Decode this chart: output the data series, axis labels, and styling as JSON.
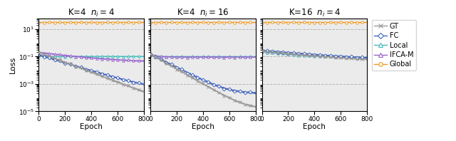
{
  "panels": [
    {
      "title": "K=4  $n_i = 4$",
      "xlabel": "Epoch",
      "xlim": [
        0,
        800
      ],
      "xticks": [
        0,
        200,
        400,
        600,
        800
      ],
      "ylim": [
        1e-05,
        60
      ],
      "curves": {
        "GT": {
          "color": "#999999",
          "marker": "x",
          "y0": 0.2,
          "yf": 1.3e-05,
          "tau": 120,
          "noise": 0.18
        },
        "FC": {
          "color": "#4466BB",
          "marker": "D",
          "y0": 0.13,
          "yf": 0.0003,
          "tau": 150,
          "noise": 0.18
        },
        "Local": {
          "color": "#44BBBB",
          "marker": "^",
          "y0": 0.11,
          "yf": 0.1,
          "tau": 30,
          "noise": 0.05
        },
        "IFCA-M": {
          "color": "#9966CC",
          "marker": "^",
          "y0": 0.2,
          "yf": 0.035,
          "tau": 300,
          "noise": 0.12
        },
        "Global": {
          "color": "#EE9922",
          "marker": "o",
          "y0": 30.0,
          "yf": 30.0,
          "tau": 9999,
          "noise": 0.03
        }
      },
      "curve_order": [
        "Global",
        "Local",
        "IFCA-M",
        "FC",
        "GT"
      ]
    },
    {
      "title": "K=4  $n_i = 16$",
      "xlabel": "Epoch",
      "xlim": [
        0,
        800
      ],
      "xticks": [
        0,
        200,
        400,
        600,
        800
      ],
      "ylim": [
        1e-05,
        60
      ],
      "curves": {
        "GT": {
          "color": "#999999",
          "marker": "x",
          "y0": 0.15,
          "yf": 1.5e-05,
          "tau": 80,
          "noise": 0.18
        },
        "FC": {
          "color": "#4466BB",
          "marker": "D",
          "y0": 0.15,
          "yf": 0.0002,
          "tau": 90,
          "noise": 0.2
        },
        "Local": {
          "color": "#44BBBB",
          "marker": "^",
          "y0": 0.12,
          "yf": 0.098,
          "tau": 30,
          "noise": 0.05
        },
        "IFCA-M": {
          "color": "#9966CC",
          "marker": "^",
          "y0": 0.14,
          "yf": 0.09,
          "tau": 50,
          "noise": 0.08
        },
        "Global": {
          "color": "#EE9922",
          "marker": "o",
          "y0": 30.0,
          "yf": 30.0,
          "tau": 9999,
          "noise": 0.03
        }
      },
      "curve_order": [
        "Global",
        "Local",
        "IFCA-M",
        "FC",
        "GT"
      ]
    },
    {
      "title": "K=16  $n_i = 4$",
      "xlabel": "Epoch",
      "xlim": [
        0,
        800
      ],
      "xticks": [
        0,
        200,
        400,
        600,
        800
      ],
      "ylim": [
        1e-05,
        60
      ],
      "curves": {
        "GT": {
          "color": "#999999",
          "marker": "x",
          "y0": 0.25,
          "yf": 0.03,
          "tau": 400,
          "noise": 0.12
        },
        "FC": {
          "color": "#4466BB",
          "marker": "D",
          "y0": 0.28,
          "yf": 0.04,
          "tau": 450,
          "noise": 0.12
        },
        "Local": {
          "color": "#44BBBB",
          "marker": "^",
          "y0": 0.22,
          "yf": 0.08,
          "tau": 250,
          "noise": 0.08
        },
        "IFCA-M": {
          "color": "#9966CC",
          "marker": "^",
          "y0": 0.26,
          "yf": 0.055,
          "tau": 380,
          "noise": 0.1
        },
        "Global": {
          "color": "#EE9922",
          "marker": "o",
          "y0": 30.0,
          "yf": 30.0,
          "tau": 9999,
          "noise": 0.03
        }
      },
      "curve_order": [
        "Global",
        "Local",
        "IFCA-M",
        "FC",
        "GT"
      ]
    }
  ],
  "ylabel": "Loss",
  "legend_labels": [
    "GT",
    "FC",
    "Local",
    "IFCA-M",
    "Global"
  ],
  "legend_colors": [
    "#999999",
    "#4466BB",
    "#44BBBB",
    "#9966CC",
    "#EE9922"
  ],
  "legend_markers": [
    "x",
    "D",
    "^",
    "^",
    "o"
  ],
  "yticks": [
    1e-05,
    0.001,
    0.1,
    10
  ],
  "ytick_labels": [
    "$10^{-5}$",
    "$10^{-3}$",
    "$10^{-1}$",
    "$10^{1}$"
  ],
  "background_color": "#ebebeb"
}
